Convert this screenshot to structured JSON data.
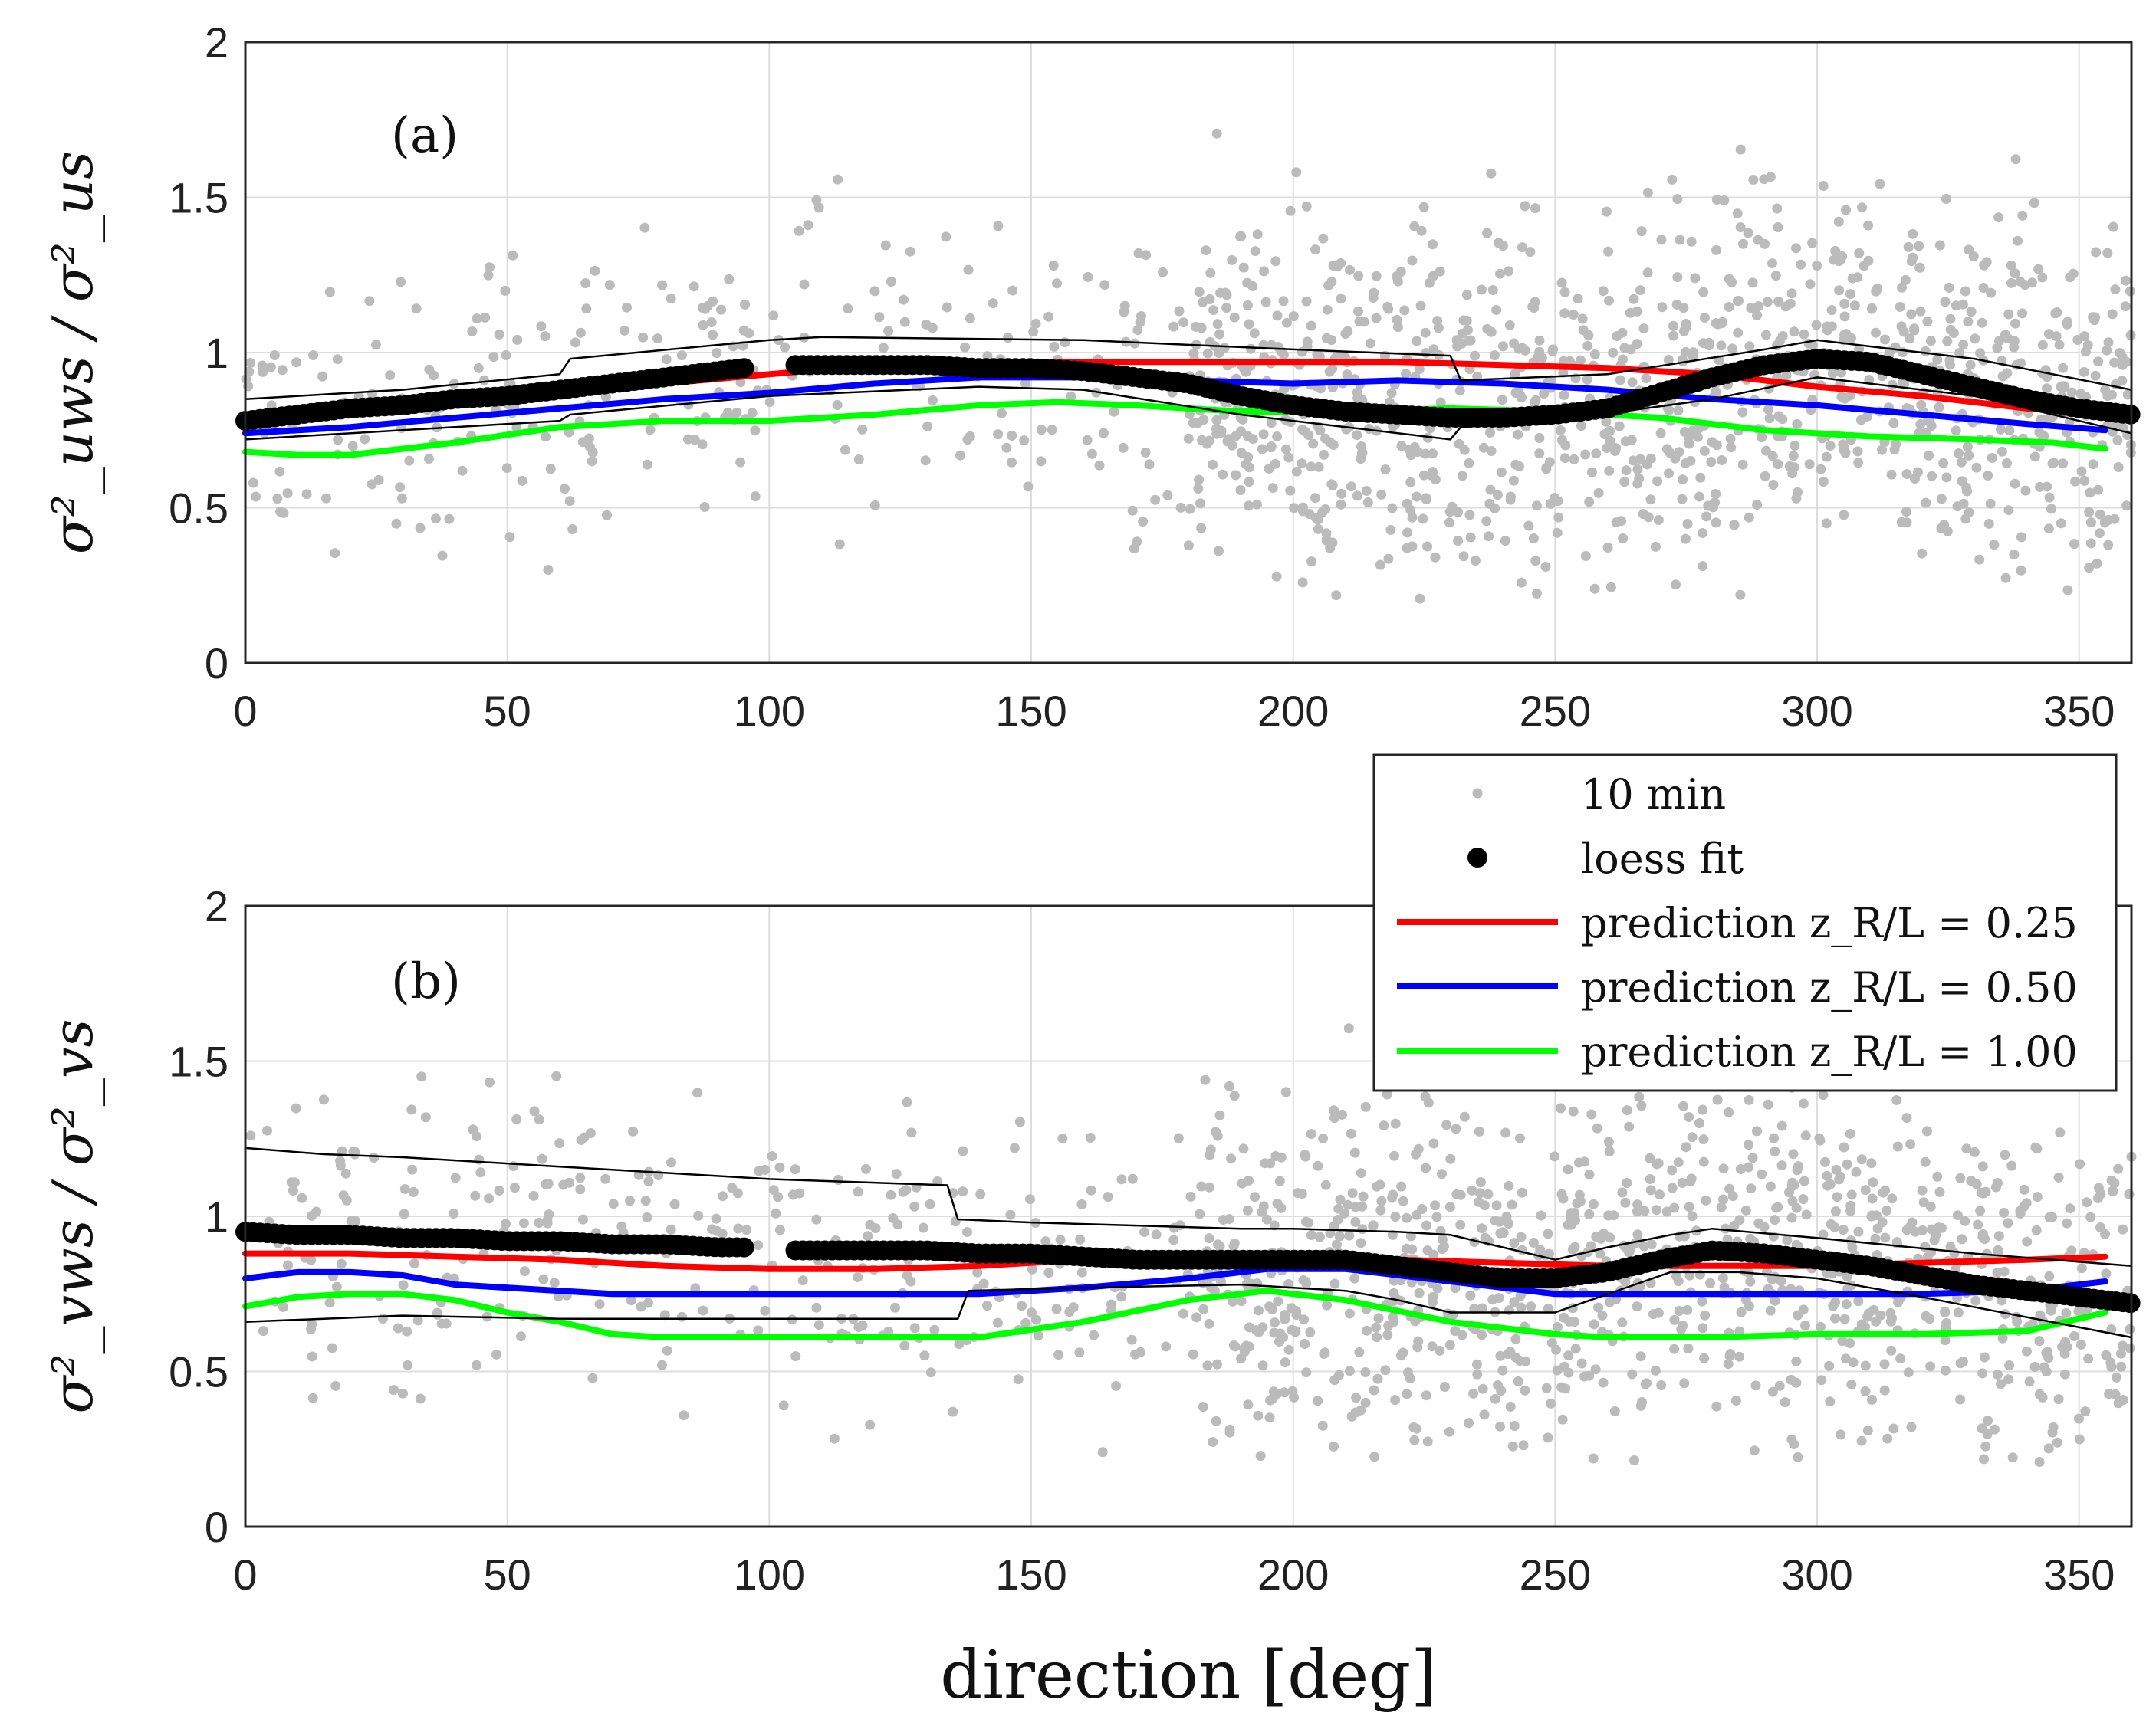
{
  "figure": {
    "xlabel": "direction [deg]",
    "legend": {
      "items": [
        {
          "key": "obs",
          "label": "10 min",
          "marker": "small-dot",
          "color": "#bbbbbb"
        },
        {
          "key": "loess",
          "label": "loess fit",
          "marker": "large-dot",
          "color": "#000000"
        },
        {
          "key": "p025",
          "label": "prediction z_R/L = 0.25",
          "marker": "line",
          "color": "#ff0000"
        },
        {
          "key": "p050",
          "label": "prediction z_R/L = 0.50",
          "marker": "line",
          "color": "#0000ff"
        },
        {
          "key": "p100",
          "label": "prediction z_R/L = 1.00",
          "marker": "line",
          "color": "#00ff00"
        }
      ]
    }
  },
  "chart_data": [
    {
      "type": "scatter",
      "panel": "(a)",
      "ylabel": "σ²_uws / σ²_us",
      "xlabel": "direction [deg]",
      "xlim": [
        0,
        360
      ],
      "ylim": [
        0,
        2
      ],
      "xticks": [
        "0",
        "50",
        "100",
        "150",
        "200",
        "250",
        "300",
        "350"
      ],
      "yticks": [
        "0",
        "0.5",
        "1",
        "1.5",
        "2"
      ],
      "grid": true,
      "series": [
        {
          "name": "loess fit",
          "color": "#000000",
          "x": [
            0,
            10,
            20,
            30,
            40,
            50,
            60,
            70,
            80,
            90,
            95,
            105,
            110,
            120,
            130,
            140,
            150,
            160,
            170,
            180,
            190,
            200,
            210,
            220,
            230,
            240,
            250,
            260,
            270,
            280,
            290,
            300,
            310,
            320,
            330,
            340,
            350,
            360
          ],
          "y": [
            0.78,
            0.8,
            0.82,
            0.83,
            0.85,
            0.86,
            0.88,
            0.9,
            0.92,
            0.94,
            0.95,
            0.96,
            0.96,
            0.96,
            0.96,
            0.95,
            0.95,
            0.94,
            0.92,
            0.9,
            0.86,
            0.83,
            0.81,
            0.8,
            0.79,
            0.79,
            0.8,
            0.82,
            0.87,
            0.92,
            0.96,
            0.98,
            0.97,
            0.93,
            0.89,
            0.85,
            0.82,
            0.8
          ]
        },
        {
          "name": "prediction z_R/L = 0.25",
          "color": "#ff0000",
          "x": [
            0,
            20,
            40,
            60,
            80,
            100,
            120,
            140,
            160,
            180,
            200,
            220,
            240,
            260,
            280,
            300,
            320,
            340,
            355
          ],
          "y": [
            0.79,
            0.81,
            0.84,
            0.87,
            0.9,
            0.93,
            0.96,
            0.97,
            0.97,
            0.97,
            0.97,
            0.97,
            0.96,
            0.95,
            0.93,
            0.89,
            0.86,
            0.82,
            0.8
          ]
        },
        {
          "name": "prediction z_R/L = 0.50",
          "color": "#0000ff",
          "x": [
            0,
            20,
            40,
            60,
            80,
            100,
            120,
            140,
            160,
            180,
            200,
            220,
            240,
            260,
            280,
            300,
            320,
            340,
            355
          ],
          "y": [
            0.74,
            0.76,
            0.79,
            0.82,
            0.85,
            0.87,
            0.9,
            0.92,
            0.92,
            0.91,
            0.9,
            0.91,
            0.9,
            0.88,
            0.85,
            0.83,
            0.8,
            0.77,
            0.75
          ]
        },
        {
          "name": "prediction z_R/L = 1.00",
          "color": "#00ff00",
          "x": [
            0,
            10,
            20,
            40,
            60,
            80,
            100,
            120,
            140,
            155,
            170,
            190,
            210,
            230,
            250,
            270,
            290,
            310,
            330,
            345,
            355
          ],
          "y": [
            0.68,
            0.67,
            0.67,
            0.71,
            0.76,
            0.78,
            0.78,
            0.8,
            0.83,
            0.84,
            0.83,
            0.81,
            0.81,
            0.82,
            0.81,
            0.79,
            0.75,
            0.73,
            0.72,
            0.71,
            0.69
          ]
        },
        {
          "name": "loess upper bound",
          "color": "#000000",
          "x": [
            0,
            30,
            60,
            62,
            100,
            110,
            160,
            200,
            230,
            232,
            260,
            290,
            300,
            330,
            360
          ],
          "y": [
            0.85,
            0.88,
            0.93,
            0.98,
            1.04,
            1.05,
            1.04,
            1.01,
            0.99,
            0.91,
            0.93,
            1.01,
            1.04,
            0.98,
            0.88
          ]
        },
        {
          "name": "loess lower bound",
          "color": "#000000",
          "x": [
            0,
            30,
            60,
            62,
            100,
            140,
            160,
            190,
            210,
            230,
            232,
            250,
            280,
            300,
            330,
            360
          ],
          "y": [
            0.72,
            0.75,
            0.78,
            0.8,
            0.86,
            0.89,
            0.88,
            0.8,
            0.76,
            0.72,
            0.76,
            0.78,
            0.85,
            0.92,
            0.86,
            0.74
          ]
        }
      ]
    },
    {
      "type": "scatter",
      "panel": "(b)",
      "ylabel": "σ²_vws / σ²_vs",
      "xlabel": "direction [deg]",
      "xlim": [
        0,
        360
      ],
      "ylim": [
        0,
        2
      ],
      "xticks": [
        "0",
        "50",
        "100",
        "150",
        "200",
        "250",
        "300",
        "350"
      ],
      "yticks": [
        "0",
        "0.5",
        "1",
        "1.5",
        "2"
      ],
      "grid": true,
      "series": [
        {
          "name": "loess fit",
          "color": "#000000",
          "x": [
            0,
            10,
            20,
            30,
            40,
            50,
            60,
            70,
            80,
            90,
            95,
            105,
            110,
            120,
            130,
            140,
            150,
            160,
            170,
            180,
            190,
            200,
            210,
            220,
            230,
            240,
            250,
            260,
            270,
            280,
            290,
            300,
            310,
            320,
            330,
            340,
            350,
            360
          ],
          "y": [
            0.95,
            0.94,
            0.94,
            0.93,
            0.93,
            0.92,
            0.92,
            0.91,
            0.91,
            0.9,
            0.9,
            0.89,
            0.89,
            0.89,
            0.89,
            0.88,
            0.88,
            0.87,
            0.86,
            0.86,
            0.86,
            0.86,
            0.86,
            0.84,
            0.82,
            0.8,
            0.8,
            0.82,
            0.86,
            0.89,
            0.88,
            0.86,
            0.84,
            0.81,
            0.78,
            0.76,
            0.74,
            0.72
          ]
        },
        {
          "name": "prediction z_R/L = 0.25",
          "color": "#ff0000",
          "x": [
            0,
            20,
            40,
            60,
            80,
            100,
            120,
            140,
            160,
            180,
            200,
            220,
            240,
            260,
            280,
            300,
            320,
            340,
            355
          ],
          "y": [
            0.88,
            0.88,
            0.87,
            0.86,
            0.84,
            0.83,
            0.83,
            0.84,
            0.86,
            0.87,
            0.87,
            0.86,
            0.85,
            0.84,
            0.84,
            0.84,
            0.85,
            0.86,
            0.87
          ]
        },
        {
          "name": "prediction z_R/L = 0.50",
          "color": "#0000ff",
          "x": [
            0,
            10,
            20,
            30,
            40,
            60,
            70,
            80,
            100,
            120,
            140,
            160,
            180,
            195,
            210,
            230,
            250,
            260,
            280,
            300,
            320,
            340,
            355
          ],
          "y": [
            0.8,
            0.82,
            0.82,
            0.81,
            0.78,
            0.76,
            0.75,
            0.75,
            0.75,
            0.75,
            0.75,
            0.77,
            0.8,
            0.83,
            0.83,
            0.79,
            0.75,
            0.75,
            0.75,
            0.75,
            0.75,
            0.76,
            0.79
          ]
        },
        {
          "name": "prediction z_R/L = 1.00",
          "color": "#00ff00",
          "x": [
            0,
            10,
            20,
            30,
            40,
            50,
            60,
            70,
            80,
            100,
            120,
            140,
            160,
            180,
            195,
            210,
            230,
            250,
            260,
            280,
            300,
            320,
            340,
            355
          ],
          "y": [
            0.71,
            0.74,
            0.75,
            0.75,
            0.73,
            0.69,
            0.66,
            0.62,
            0.61,
            0.61,
            0.61,
            0.61,
            0.66,
            0.73,
            0.76,
            0.73,
            0.66,
            0.62,
            0.61,
            0.61,
            0.62,
            0.62,
            0.63,
            0.69
          ]
        },
        {
          "name": "loess upper bound",
          "color": "#000000",
          "x": [
            0,
            15,
            30,
            60,
            100,
            134,
            136,
            150,
            190,
            200,
            220,
            230,
            240,
            250,
            260,
            272,
            280,
            300,
            330,
            360
          ],
          "y": [
            1.22,
            1.2,
            1.19,
            1.16,
            1.12,
            1.1,
            0.99,
            0.98,
            0.96,
            0.96,
            0.95,
            0.94,
            0.9,
            0.86,
            0.9,
            0.94,
            0.96,
            0.93,
            0.88,
            0.84
          ]
        },
        {
          "name": "loess lower bound",
          "color": "#000000",
          "x": [
            0,
            15,
            30,
            60,
            100,
            136,
            138,
            160,
            190,
            200,
            210,
            220,
            230,
            250,
            272,
            285,
            300,
            320,
            360
          ],
          "y": [
            0.66,
            0.67,
            0.68,
            0.67,
            0.67,
            0.67,
            0.76,
            0.77,
            0.78,
            0.77,
            0.76,
            0.73,
            0.69,
            0.69,
            0.82,
            0.82,
            0.8,
            0.74,
            0.61
          ]
        }
      ]
    }
  ]
}
